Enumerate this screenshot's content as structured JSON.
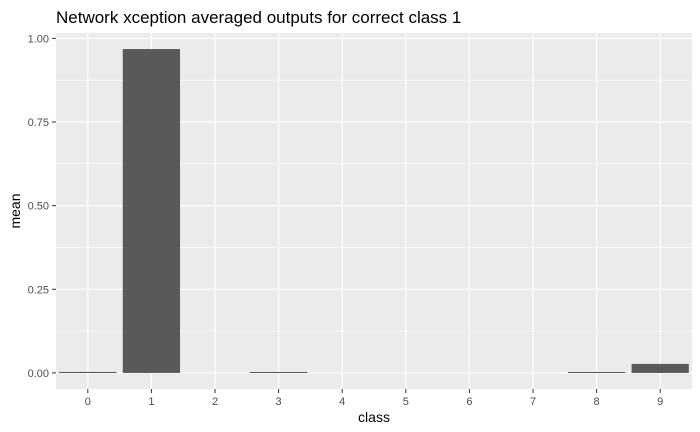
{
  "chart_data": {
    "type": "bar",
    "title": "Network xception averaged outputs for correct class 1",
    "xlabel": "class",
    "ylabel": "mean",
    "categories": [
      "0",
      "1",
      "2",
      "3",
      "4",
      "5",
      "6",
      "7",
      "8",
      "9"
    ],
    "values": [
      0.003,
      0.968,
      0.0,
      0.002,
      0.0,
      0.0,
      0.0,
      0.0,
      0.002,
      0.027
    ],
    "ylim": [
      -0.048,
      1.016
    ],
    "yticks": [
      0.0,
      0.25,
      0.5,
      0.75,
      1.0
    ],
    "ytick_labels": [
      "0.00",
      "0.25",
      "0.50",
      "0.75",
      "1.00"
    ],
    "grid": true,
    "legend": "none",
    "colors": {
      "panel_background": "#ebebeb",
      "gridline": "#ffffff",
      "bar_fill": "#595959",
      "tick_label": "#4d4d4d",
      "text": "#000000"
    }
  }
}
